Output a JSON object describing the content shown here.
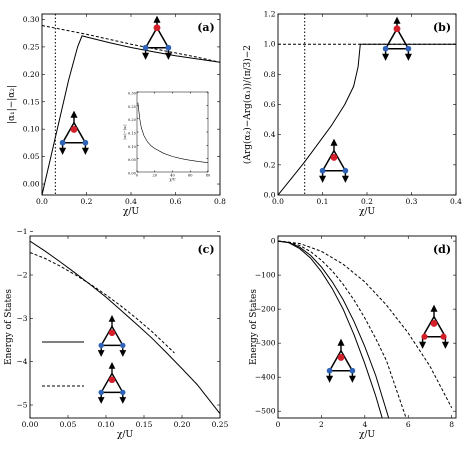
{
  "colors": {
    "line": "#000000",
    "red_site": "#d4202a",
    "blue_site": "#2f63b8",
    "frame": "#000000"
  },
  "icons": [
    "triangle-lattice-icon"
  ],
  "chart_data": [
    {
      "id": "a",
      "type": "line",
      "tag": "(a)",
      "xlabel": "χ/U",
      "ylabel": "|α₁|−|α₂|",
      "xlim": [
        0,
        0.8
      ],
      "ylim": [
        -0.02,
        0.31
      ],
      "xticks": [
        "0.0",
        "0.2",
        "0.4",
        "0.6",
        "0.8"
      ],
      "yticks": [
        "0.00",
        "0.05",
        "0.10",
        "0.15",
        "0.20",
        "0.25",
        "0.30"
      ],
      "xtick_values": [
        0,
        0.2,
        0.4,
        0.6,
        0.8
      ],
      "ytick_values": [
        0,
        0.05,
        0.1,
        0.15,
        0.2,
        0.25,
        0.3
      ],
      "vline": 0.06,
      "series": [
        {
          "style": "solid",
          "x": [
            0.0,
            0.04,
            0.08,
            0.12,
            0.16,
            0.18,
            0.2,
            0.3,
            0.4,
            0.5,
            0.6,
            0.7,
            0.8
          ],
          "y": [
            -0.02,
            0.05,
            0.12,
            0.19,
            0.25,
            0.27,
            0.268,
            0.258,
            0.249,
            0.241,
            0.234,
            0.228,
            0.222
          ]
        },
        {
          "style": "dashed",
          "x": [
            0.0,
            0.1,
            0.2,
            0.3,
            0.4,
            0.5,
            0.6,
            0.7,
            0.8
          ],
          "y": [
            0.289,
            0.281,
            0.273,
            0.264,
            0.255,
            0.247,
            0.239,
            0.231,
            0.222
          ]
        }
      ],
      "inset": {
        "xlabel": "χ/U",
        "ylabel": "|α₁|−|α₂|",
        "xlim": [
          0,
          80
        ],
        "ylim": [
          0,
          0.3
        ],
        "xticks": [
          "0",
          "20",
          "40",
          "60",
          "80"
        ],
        "yticks": [
          "0.00",
          "0.05",
          "0.10",
          "0.15",
          "0.20",
          "0.25",
          "0.30"
        ],
        "xtick_values": [
          0,
          20,
          40,
          60,
          80
        ],
        "ytick_values": [
          0,
          0.05,
          0.1,
          0.15,
          0.2,
          0.25,
          0.3
        ],
        "x": [
          1,
          3,
          5,
          8,
          12,
          16,
          20,
          30,
          40,
          50,
          60,
          70,
          80
        ],
        "y": [
          0.26,
          0.2,
          0.165,
          0.135,
          0.112,
          0.098,
          0.088,
          0.07,
          0.058,
          0.05,
          0.044,
          0.039,
          0.035
        ]
      }
    },
    {
      "id": "b",
      "type": "line",
      "tag": "(b)",
      "xlabel": "χ/U",
      "ylabel": "(Arg(α₂)−Arg(α₁))/(π/3)−2",
      "xlim": [
        0,
        0.4
      ],
      "ylim": [
        0,
        1.2
      ],
      "xticks": [
        "0.0",
        "0.1",
        "0.2",
        "0.3",
        "0.4"
      ],
      "yticks": [
        "0.0",
        "0.2",
        "0.4",
        "0.6",
        "0.8",
        "1.0",
        "1.2"
      ],
      "xtick_values": [
        0,
        0.1,
        0.2,
        0.3,
        0.4
      ],
      "ytick_values": [
        0,
        0.2,
        0.4,
        0.6,
        0.8,
        1.0,
        1.2
      ],
      "vline": 0.06,
      "series": [
        {
          "style": "solid",
          "x": [
            0.0,
            0.03,
            0.06,
            0.09,
            0.12,
            0.15,
            0.17,
            0.18,
            0.185,
            0.185,
            0.2,
            0.4
          ],
          "y": [
            0.0,
            0.11,
            0.22,
            0.34,
            0.46,
            0.6,
            0.72,
            0.85,
            1.0,
            1.0,
            1.0,
            1.0
          ]
        },
        {
          "style": "dashed",
          "x": [
            0.0,
            0.4
          ],
          "y": [
            1.0,
            1.0
          ]
        }
      ]
    },
    {
      "id": "c",
      "type": "line",
      "tag": "(c)",
      "xlabel": "χ/U",
      "ylabel": "Energy of States",
      "xlim": [
        0,
        0.25
      ],
      "ylim": [
        -5.3,
        -1.1
      ],
      "xticks": [
        "0.00",
        "0.05",
        "0.10",
        "0.15",
        "0.20",
        "0.25"
      ],
      "yticks": [
        "−1",
        "−2",
        "−3",
        "−4",
        "−5"
      ],
      "xtick_values": [
        0,
        0.05,
        0.1,
        0.15,
        0.2,
        0.25
      ],
      "ytick_values": [
        -1,
        -2,
        -3,
        -4,
        -5
      ],
      "legend": [
        {
          "style": "solid"
        },
        {
          "style": "dashed"
        }
      ],
      "series": [
        {
          "style": "solid",
          "x": [
            0.0,
            0.02,
            0.04,
            0.06,
            0.08,
            0.1,
            0.12,
            0.14,
            0.16,
            0.18,
            0.2,
            0.22,
            0.25
          ],
          "y": [
            -1.22,
            -1.45,
            -1.7,
            -1.96,
            -2.23,
            -2.51,
            -2.82,
            -3.13,
            -3.45,
            -3.8,
            -4.16,
            -4.53,
            -5.2
          ]
        },
        {
          "style": "dashed",
          "x": [
            0.0,
            0.02,
            0.04,
            0.06,
            0.08,
            0.1,
            0.12,
            0.14,
            0.16,
            0.18,
            0.19
          ],
          "y": [
            -1.48,
            -1.62,
            -1.8,
            -2.0,
            -2.22,
            -2.46,
            -2.72,
            -3.0,
            -3.3,
            -3.63,
            -3.8
          ]
        }
      ]
    },
    {
      "id": "d",
      "type": "line",
      "tag": "(d)",
      "xlabel": "χ/U",
      "ylabel": "Energy of States",
      "xlim": [
        0,
        8.2
      ],
      "ylim": [
        -520,
        15
      ],
      "xticks": [
        "0",
        "2",
        "4",
        "6",
        "8"
      ],
      "yticks": [
        "0",
        "−100",
        "−200",
        "−300",
        "−400",
        "−500"
      ],
      "xtick_values": [
        0,
        2,
        4,
        6,
        8
      ],
      "ytick_values": [
        0,
        -100,
        -200,
        -300,
        -400,
        -500
      ],
      "series": [
        {
          "style": "solid",
          "x": [
            0,
            0.5,
            1,
            1.5,
            2,
            2.5,
            3,
            3.5,
            4,
            4.5,
            4.8
          ],
          "y": [
            0,
            -5,
            -22,
            -50,
            -90,
            -140,
            -200,
            -275,
            -360,
            -455,
            -520
          ]
        },
        {
          "style": "solid",
          "x": [
            0,
            0.5,
            1,
            1.5,
            2,
            2.5,
            3,
            3.5,
            4,
            4.5,
            5.1
          ],
          "y": [
            0,
            -4,
            -18,
            -42,
            -76,
            -120,
            -172,
            -236,
            -310,
            -395,
            -520
          ]
        },
        {
          "style": "dashed",
          "x": [
            0,
            0.5,
            1,
            1.5,
            2,
            2.5,
            3,
            3.5,
            4,
            4.5,
            5,
            5.9
          ],
          "y": [
            0,
            -3,
            -13,
            -31,
            -56,
            -88,
            -127,
            -173,
            -226,
            -286,
            -352,
            -520
          ]
        },
        {
          "style": "dashed",
          "x": [
            0,
            1,
            2,
            3,
            4,
            5,
            6,
            7,
            8
          ],
          "y": [
            0,
            -7,
            -30,
            -68,
            -120,
            -188,
            -270,
            -368,
            -490
          ]
        }
      ]
    }
  ]
}
